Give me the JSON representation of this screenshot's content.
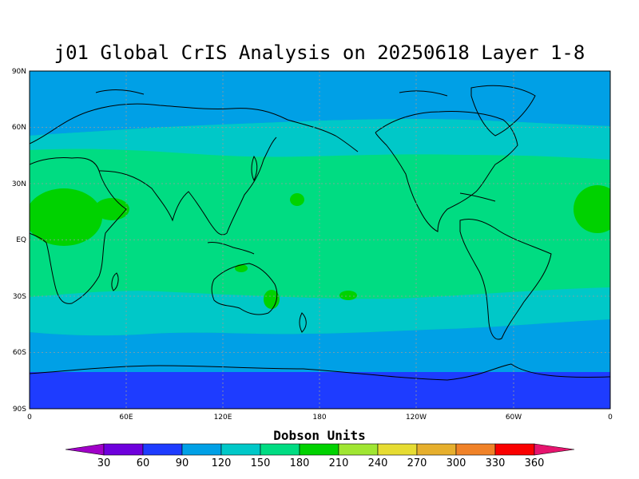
{
  "title": "j01 Global CrIS Analysis on 20250618 Layer 1-8",
  "map": {
    "lat_ticks": [
      "90N",
      "60N",
      "30N",
      "EQ",
      "30S",
      "60S",
      "90S"
    ],
    "lon_ticks": [
      "0",
      "60E",
      "120E",
      "180",
      "120W",
      "60W",
      "0"
    ],
    "grid": true,
    "projection": "cylindrical equidistant"
  },
  "colorbar": {
    "title": "Dobson Units",
    "labels": [
      "30",
      "60",
      "90",
      "120",
      "150",
      "180",
      "210",
      "240",
      "270",
      "300",
      "330",
      "360"
    ],
    "colors": [
      "#a000c8",
      "#6e00dc",
      "#1e3cff",
      "#00a0e6",
      "#00c8c8",
      "#00dc82",
      "#00d200",
      "#a0e632",
      "#e6dc32",
      "#e6af2d",
      "#f08228",
      "#fa0000",
      "#e6146e"
    ]
  }
}
